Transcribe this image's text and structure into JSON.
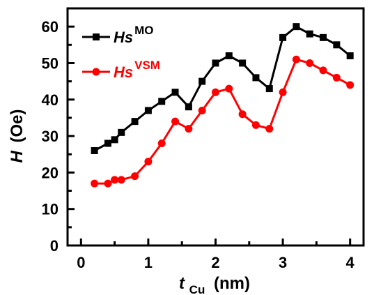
{
  "chart_data": {
    "type": "line",
    "xlabel": {
      "symbol": "t",
      "subscript": "Cu",
      "unit": "(nm)"
    },
    "ylabel": {
      "symbol": "H",
      "unit": "(Oe)"
    },
    "xlim": [
      -0.2,
      4.2
    ],
    "ylim": [
      0,
      65
    ],
    "x_ticks": [
      0,
      1,
      2,
      3,
      4
    ],
    "y_ticks": [
      0,
      10,
      20,
      30,
      40,
      50,
      60
    ],
    "x_tick_labels": [
      "0",
      "1",
      "2",
      "3",
      "4"
    ],
    "y_tick_labels": [
      "0",
      "10",
      "20",
      "30",
      "40",
      "50",
      "60"
    ],
    "grid": false,
    "legend_position": "top-left",
    "series": [
      {
        "name_main": "Hs",
        "name_sup": "MO",
        "color": "#000000",
        "marker": "square",
        "x": [
          0.2,
          0.4,
          0.5,
          0.6,
          0.8,
          1.0,
          1.2,
          1.4,
          1.6,
          1.8,
          2.0,
          2.2,
          2.4,
          2.6,
          2.8,
          3.0,
          3.2,
          3.4,
          3.6,
          3.8,
          4.0
        ],
        "y": [
          26,
          28,
          29,
          31,
          34,
          37,
          39.5,
          42,
          38,
          45,
          50,
          52,
          50,
          46,
          43,
          57,
          60,
          58,
          57,
          55,
          52
        ]
      },
      {
        "name_main": "Hs",
        "name_sup": "VSM",
        "color": "#ff0000",
        "marker": "circle",
        "x": [
          0.2,
          0.4,
          0.5,
          0.6,
          0.8,
          1.0,
          1.2,
          1.4,
          1.6,
          1.8,
          2.0,
          2.2,
          2.4,
          2.6,
          2.8,
          3.0,
          3.2,
          3.4,
          3.6,
          3.8,
          4.0
        ],
        "y": [
          17,
          17,
          18,
          18,
          19,
          23,
          28,
          34,
          32,
          37,
          42,
          43,
          36,
          33,
          32,
          42,
          51,
          50,
          48,
          46,
          44
        ]
      }
    ]
  }
}
